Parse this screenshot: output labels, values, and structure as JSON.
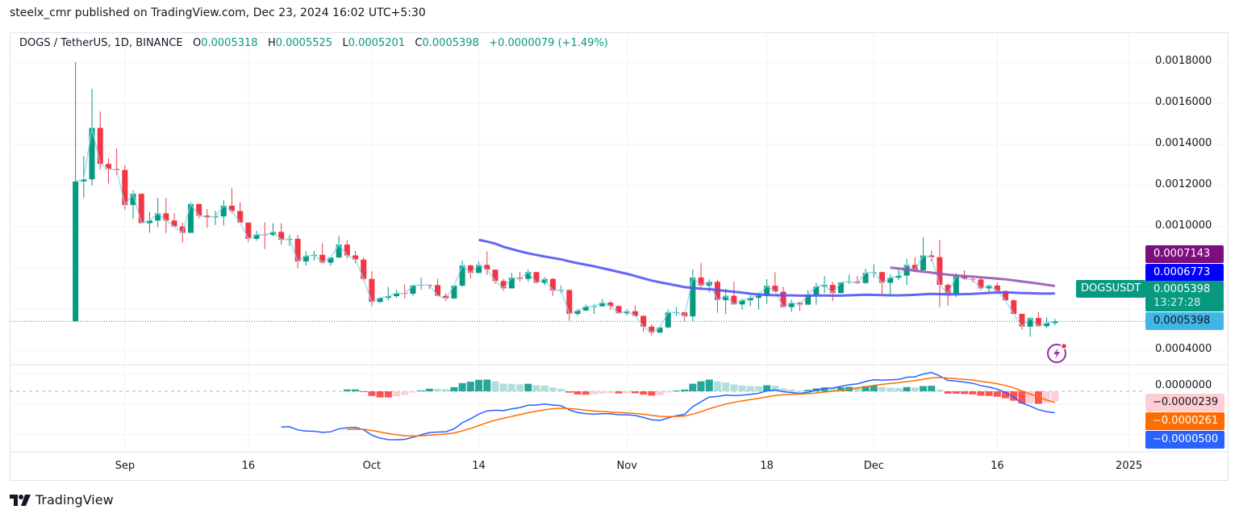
{
  "header": {
    "published": "steelx_cmr published on TradingView.com, Dec 23, 2024 16:02 UTC+5:30"
  },
  "legend": {
    "symbol": "DOGS / TetherUS, 1D, BINANCE",
    "o_label": "O",
    "o": "0.0005318",
    "h_label": "H",
    "h": "0.0005525",
    "l_label": "L",
    "l": "0.0005201",
    "c_label": "C",
    "c": "0.0005398",
    "change": "+0.0000079 (+1.49%)"
  },
  "price_labels": {
    "sma100": "0.0007143",
    "sma50": "0.0006773",
    "symbol_tag": "DOGSUSDT",
    "last": "0.0005398",
    "countdown": "13:27:28",
    "close_line": "0.0005398",
    "hist": "−0.0000239",
    "signal": "−0.0000261",
    "macd": "−0.0000500"
  },
  "footer": {
    "brand": "TradingView"
  },
  "chart_data": {
    "type": "candlestick",
    "colors": {
      "up": "#089981",
      "down": "#f23645",
      "sma50": "#5454f5",
      "sma100": "#9a55b5",
      "close_line": "#8fd3ef",
      "macd": "#2962ff",
      "signal": "#ff6d00",
      "hist_up_strong": "#26a69a",
      "hist_up_weak": "#b2dfdb",
      "hist_down_strong": "#ff5252",
      "hist_down_weak": "#ffcdd2",
      "sma100_label": "#7b0f7e",
      "sma50_label": "#0000ff",
      "last_label": "#089981",
      "close_label": "#3fb6e6",
      "grid": "#f2f3f5"
    },
    "price_axis": {
      "ylim": [
        0.000329,
        0.001945
      ],
      "grid_step": 0.0002,
      "ticks": [
        {
          "v": 0.0018,
          "t": "0.0018000"
        },
        {
          "v": 0.0016,
          "t": "0.0016000"
        },
        {
          "v": 0.0014,
          "t": "0.0014000"
        },
        {
          "v": 0.0012,
          "t": "0.0012000"
        },
        {
          "v": 0.001,
          "t": "0.0010000"
        },
        {
          "v": 0.0004,
          "t": "0.0004000"
        }
      ]
    },
    "macd_axis": {
      "ylim": [
        -0.00014,
        6.15e-05
      ],
      "ticks": [
        {
          "v": 0,
          "t": "0.0000000"
        }
      ]
    },
    "x_axis": {
      "xlim": [
        "2024-08-18",
        "2025-01-03"
      ],
      "ticks": [
        {
          "d": "2024-09-01",
          "t": "Sep"
        },
        {
          "d": "2024-09-16",
          "t": "16"
        },
        {
          "d": "2024-10-01",
          "t": "Oct"
        },
        {
          "d": "2024-10-14",
          "t": "14"
        },
        {
          "d": "2024-11-01",
          "t": "Nov"
        },
        {
          "d": "2024-11-18",
          "t": "18"
        },
        {
          "d": "2024-12-01",
          "t": "Dec"
        },
        {
          "d": "2024-12-16",
          "t": "16"
        },
        {
          "d": "2025-01-01",
          "t": "2025"
        }
      ]
    },
    "indicators": [
      "SMA 50",
      "SMA 100",
      "MACD"
    ],
    "candles": [
      [
        "2024-08-26",
        0.00054,
        0.0018,
        0.00054,
        0.00122
      ],
      [
        "2024-08-27",
        0.00122,
        0.001344,
        0.001141,
        0.00123
      ],
      [
        "2024-08-28",
        0.00123,
        0.00167,
        0.0012,
        0.00148
      ],
      [
        "2024-08-29",
        0.00148,
        0.00156,
        0.001278,
        0.001305
      ],
      [
        "2024-08-30",
        0.001305,
        0.001333,
        0.00121,
        0.00128
      ],
      [
        "2024-08-31",
        0.00128,
        0.00138,
        0.001252,
        0.001275
      ],
      [
        "2024-09-01",
        0.001276,
        0.0013,
        0.001082,
        0.001105
      ],
      [
        "2024-09-02",
        0.001105,
        0.001177,
        0.001037,
        0.00116
      ],
      [
        "2024-09-03",
        0.00116,
        0.00116,
        0.001016,
        0.001017
      ],
      [
        "2024-09-04",
        0.001017,
        0.001072,
        0.000971,
        0.00103
      ],
      [
        "2024-09-05",
        0.00103,
        0.001139,
        0.000997,
        0.001065
      ],
      [
        "2024-09-06",
        0.001065,
        0.00114,
        0.000969,
        0.00103
      ],
      [
        "2024-09-07",
        0.00103,
        0.001065,
        0.001,
        0.001001
      ],
      [
        "2024-09-08",
        0.001001,
        0.00102,
        0.000922,
        0.00097
      ],
      [
        "2024-09-09",
        0.00097,
        0.00112,
        0.00097,
        0.00111
      ],
      [
        "2024-09-10",
        0.00111,
        0.00111,
        0.00104,
        0.001054
      ],
      [
        "2024-09-11",
        0.001054,
        0.001085,
        0.000995,
        0.001045
      ],
      [
        "2024-09-12",
        0.001045,
        0.001077,
        0.001008,
        0.00105
      ],
      [
        "2024-09-13",
        0.00105,
        0.001128,
        0.001007,
        0.001102
      ],
      [
        "2024-09-14",
        0.001102,
        0.001187,
        0.001065,
        0.001076
      ],
      [
        "2024-09-15",
        0.001076,
        0.00112,
        0.00102,
        0.00102
      ],
      [
        "2024-09-16",
        0.00102,
        0.00102,
        0.000926,
        0.000941
      ],
      [
        "2024-09-17",
        0.000941,
        0.00098,
        0.000931,
        0.000962
      ],
      [
        "2024-09-18",
        0.000962,
        0.00102,
        0.000891,
        0.00096
      ],
      [
        "2024-09-19",
        0.00096,
        0.001017,
        0.000954,
        0.000975
      ],
      [
        "2024-09-20",
        0.000975,
        0.001017,
        0.000913,
        0.000936
      ],
      [
        "2024-09-21",
        0.000936,
        0.00096,
        0.000906,
        0.000941
      ],
      [
        "2024-09-22",
        0.000941,
        0.00096,
        0.000797,
        0.000831
      ],
      [
        "2024-09-23",
        0.000831,
        0.00088,
        0.00081,
        0.000858
      ],
      [
        "2024-09-24",
        0.000858,
        0.000883,
        0.000835,
        0.000863
      ],
      [
        "2024-09-25",
        0.000863,
        0.000919,
        0.000818,
        0.000825
      ],
      [
        "2024-09-26",
        0.000825,
        0.00085,
        0.00081,
        0.00085
      ],
      [
        "2024-09-27",
        0.00085,
        0.000956,
        0.00085,
        0.000913
      ],
      [
        "2024-09-28",
        0.000913,
        0.000935,
        0.000845,
        0.00086
      ],
      [
        "2024-09-29",
        0.00086,
        0.000882,
        0.000823,
        0.00084
      ],
      [
        "2024-09-30",
        0.00084,
        0.00085,
        0.000735,
        0.000746
      ],
      [
        "2024-10-01",
        0.000746,
        0.000782,
        0.000612,
        0.000634
      ],
      [
        "2024-10-02",
        0.000634,
        0.000654,
        0.000629,
        0.000654
      ],
      [
        "2024-10-03",
        0.000654,
        0.000707,
        0.000641,
        0.000662
      ],
      [
        "2024-10-04",
        0.000662,
        0.000693,
        0.000654,
        0.000677
      ],
      [
        "2024-10-05",
        0.000677,
        0.000719,
        0.000652,
        0.000674
      ],
      [
        "2024-10-06",
        0.000674,
        0.000719,
        0.000664,
        0.000714
      ],
      [
        "2024-10-07",
        0.000714,
        0.000753,
        0.000693,
        0.000717
      ],
      [
        "2024-10-08",
        0.000717,
        0.00072,
        0.000696,
        0.000716
      ],
      [
        "2024-10-09",
        0.000716,
        0.000747,
        0.000662,
        0.000664
      ],
      [
        "2024-10-10",
        0.000664,
        0.000677,
        0.000638,
        0.000651
      ],
      [
        "2024-10-11",
        0.000651,
        0.000713,
        0.000648,
        0.000713
      ],
      [
        "2024-10-12",
        0.000713,
        0.000835,
        0.000707,
        0.000812
      ],
      [
        "2024-10-13",
        0.000812,
        0.000814,
        0.000749,
        0.000775
      ],
      [
        "2024-10-14",
        0.000775,
        0.000831,
        0.000775,
        0.000814
      ],
      [
        "2024-10-15",
        0.000814,
        0.00088,
        0.000765,
        0.000791
      ],
      [
        "2024-10-16",
        0.000791,
        0.000792,
        0.000723,
        0.000736
      ],
      [
        "2024-10-17",
        0.000736,
        0.000746,
        0.000688,
        0.0007
      ],
      [
        "2024-10-18",
        0.0007,
        0.000775,
        0.0007,
        0.000752
      ],
      [
        "2024-10-19",
        0.000752,
        0.00078,
        0.000734,
        0.000746
      ],
      [
        "2024-10-20",
        0.000746,
        0.000792,
        0.000732,
        0.000779
      ],
      [
        "2024-10-21",
        0.000779,
        0.00078,
        0.000723,
        0.000727
      ],
      [
        "2024-10-22",
        0.000727,
        0.000756,
        0.000714,
        0.000746
      ],
      [
        "2024-10-23",
        0.000746,
        0.00075,
        0.000664,
        0.00069
      ],
      [
        "2024-10-24",
        0.00069,
        0.000714,
        0.000677,
        0.000692
      ],
      [
        "2024-10-25",
        0.000692,
        0.000695,
        0.000543,
        0.000576
      ],
      [
        "2024-10-26",
        0.000576,
        0.000598,
        0.000566,
        0.000592
      ],
      [
        "2024-10-27",
        0.000592,
        0.000622,
        0.00059,
        0.000612
      ],
      [
        "2024-10-28",
        0.000612,
        0.000624,
        0.000575,
        0.000613
      ],
      [
        "2024-10-29",
        0.000613,
        0.000648,
        0.000612,
        0.000631
      ],
      [
        "2024-10-30",
        0.000631,
        0.00064,
        0.000594,
        0.000614
      ],
      [
        "2024-10-31",
        0.000614,
        0.000618,
        0.000576,
        0.000579
      ],
      [
        "2024-11-01",
        0.000579,
        0.000598,
        0.000568,
        0.000589
      ],
      [
        "2024-11-02",
        0.000589,
        0.000617,
        0.000563,
        0.000566
      ],
      [
        "2024-11-03",
        0.000566,
        0.00057,
        0.000488,
        0.000514
      ],
      [
        "2024-11-04",
        0.000514,
        0.000525,
        0.000471,
        0.000485
      ],
      [
        "2024-11-05",
        0.000485,
        0.000514,
        0.000484,
        0.00051
      ],
      [
        "2024-11-06",
        0.00051,
        0.000598,
        0.000508,
        0.000583
      ],
      [
        "2024-11-07",
        0.000583,
        0.000609,
        0.000566,
        0.000584
      ],
      [
        "2024-11-08",
        0.000584,
        0.000585,
        0.00054,
        0.000564
      ],
      [
        "2024-11-09",
        0.000564,
        0.000792,
        0.00054,
        0.000753
      ],
      [
        "2024-11-10",
        0.000753,
        0.000824,
        0.0007,
        0.000713
      ],
      [
        "2024-11-11",
        0.000713,
        0.000745,
        0.00068,
        0.000732
      ],
      [
        "2024-11-12",
        0.000732,
        0.000743,
        0.000582,
        0.000643
      ],
      [
        "2024-11-13",
        0.000643,
        0.000697,
        0.000575,
        0.000664
      ],
      [
        "2024-11-14",
        0.000664,
        0.000732,
        0.00062,
        0.000622
      ],
      [
        "2024-11-15",
        0.000622,
        0.000652,
        0.000596,
        0.000642
      ],
      [
        "2024-11-16",
        0.000642,
        0.000667,
        0.000614,
        0.000654
      ],
      [
        "2024-11-17",
        0.000654,
        0.00068,
        0.000596,
        0.000667
      ],
      [
        "2024-11-18",
        0.000667,
        0.000745,
        0.000625,
        0.000713
      ],
      [
        "2024-11-19",
        0.000713,
        0.000778,
        0.000684,
        0.000684
      ],
      [
        "2024-11-20",
        0.000684,
        0.000708,
        0.000607,
        0.000609
      ],
      [
        "2024-11-21",
        0.000609,
        0.000645,
        0.000585,
        0.00063
      ],
      [
        "2024-11-22",
        0.00063,
        0.000635,
        0.000591,
        0.000621
      ],
      [
        "2024-11-23",
        0.000621,
        0.000693,
        0.00062,
        0.00067
      ],
      [
        "2024-11-24",
        0.00067,
        0.000727,
        0.00062,
        0.000709
      ],
      [
        "2024-11-25",
        0.000709,
        0.00076,
        0.000677,
        0.000717
      ],
      [
        "2024-11-26",
        0.000717,
        0.000732,
        0.000638,
        0.000677
      ],
      [
        "2024-11-27",
        0.000677,
        0.000732,
        0.000677,
        0.000729
      ],
      [
        "2024-11-28",
        0.000729,
        0.000766,
        0.000722,
        0.000733
      ],
      [
        "2024-11-29",
        0.000733,
        0.00076,
        0.000721,
        0.000726
      ],
      [
        "2024-11-30",
        0.000726,
        0.000795,
        0.000723,
        0.000775
      ],
      [
        "2024-12-01",
        0.000775,
        0.000817,
        0.000752,
        0.000779
      ],
      [
        "2024-12-02",
        0.000779,
        0.000782,
        0.000671,
        0.000727
      ],
      [
        "2024-12-03",
        0.000727,
        0.000769,
        0.000671,
        0.000752
      ],
      [
        "2024-12-04",
        0.000752,
        0.000795,
        0.000739,
        0.000762
      ],
      [
        "2024-12-05",
        0.000762,
        0.000843,
        0.000717,
        0.000814
      ],
      [
        "2024-12-06",
        0.000814,
        0.000851,
        0.000788,
        0.000788
      ],
      [
        "2024-12-07",
        0.000788,
        0.000948,
        0.000788,
        0.00086
      ],
      [
        "2024-12-08",
        0.00086,
        0.000884,
        0.00083,
        0.000852
      ],
      [
        "2024-12-09",
        0.000852,
        0.000936,
        0.000609,
        0.000717
      ],
      [
        "2024-12-10",
        0.000717,
        0.000725,
        0.000616,
        0.000673
      ],
      [
        "2024-12-11",
        0.000673,
        0.000775,
        0.000658,
        0.00076
      ],
      [
        "2024-12-12",
        0.00076,
        0.000788,
        0.000742,
        0.000746
      ],
      [
        "2024-12-13",
        0.000746,
        0.000762,
        0.000729,
        0.000743
      ],
      [
        "2024-12-14",
        0.000743,
        0.00075,
        0.00069,
        0.0007
      ],
      [
        "2024-12-15",
        0.0007,
        0.00072,
        0.000681,
        0.000714
      ],
      [
        "2024-12-16",
        0.000714,
        0.000728,
        0.000685,
        0.000687
      ],
      [
        "2024-12-17",
        0.000687,
        0.00069,
        0.000638,
        0.000642
      ],
      [
        "2024-12-18",
        0.000642,
        0.000647,
        0.000572,
        0.000576
      ],
      [
        "2024-12-19",
        0.000576,
        0.000578,
        0.000498,
        0.000514
      ],
      [
        "2024-12-20",
        0.000514,
        0.00056,
        0.000465,
        0.000556
      ],
      [
        "2024-12-21",
        0.000556,
        0.000586,
        0.000514,
        0.000516
      ],
      [
        "2024-12-22",
        0.000516,
        0.00056,
        0.000507,
        0.000532
      ],
      [
        "2024-12-23",
        0.0005318,
        0.0005525,
        0.0005201,
        0.0005398
      ]
    ]
  }
}
